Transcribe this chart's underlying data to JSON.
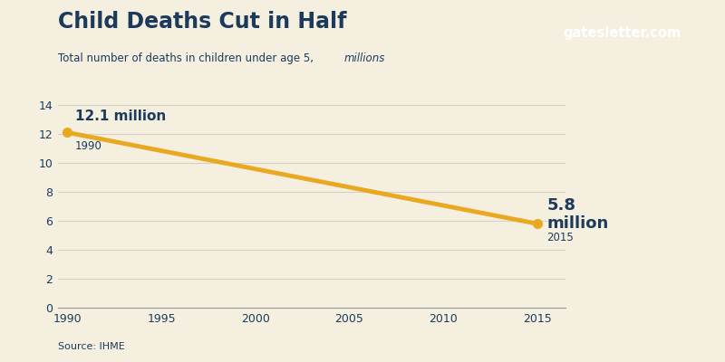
{
  "title": "Child Deaths Cut in Half",
  "subtitle_regular": "Total number of deaths in children under age 5, ",
  "subtitle_italic": "millions",
  "source": "Source: IHME",
  "watermark": "gatesletter.com",
  "x": [
    1990,
    2015
  ],
  "y": [
    12.1,
    5.8
  ],
  "line_color": "#E8A820",
  "line_width": 3.5,
  "title_color": "#1B3A5C",
  "text_color": "#1B3A5C",
  "bg_color": "#F5EFE0",
  "watermark_bg": "#111111",
  "watermark_text_color": "#FFFFFF",
  "annotation_start_label": "12.1 million",
  "annotation_start_year": "1990",
  "annotation_end_line1": "5.8",
  "annotation_end_line2": "million",
  "annotation_end_year": "2015",
  "xlim": [
    1989.5,
    2016.5
  ],
  "ylim": [
    0,
    14.5
  ],
  "yticks": [
    0,
    2,
    4,
    6,
    8,
    10,
    12,
    14
  ],
  "xticks": [
    1990,
    1995,
    2000,
    2005,
    2010,
    2015
  ],
  "grid_color": "#D8D0C0",
  "axis_color": "#999999",
  "dot_color": "#E8A820",
  "dot_size": 7
}
